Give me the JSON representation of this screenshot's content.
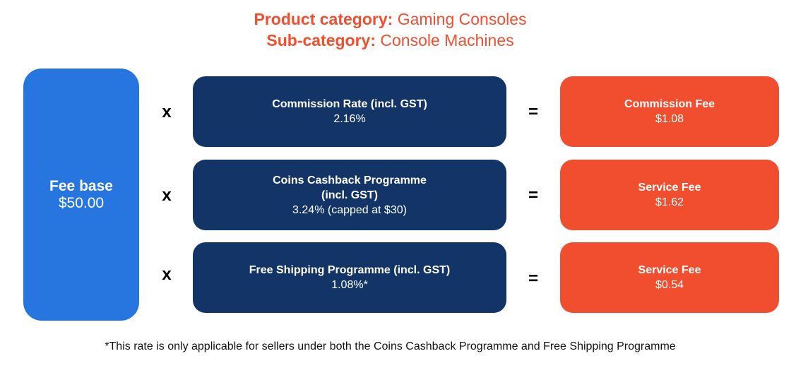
{
  "header": {
    "category_label": "Product category:",
    "category_value": "Gaming Consoles",
    "subcategory_label": "Sub-category:",
    "subcategory_value": "Console Machines"
  },
  "fee_base": {
    "label": "Fee base",
    "value": "$50.00"
  },
  "operators": {
    "multiply": "x",
    "equals": "="
  },
  "rows": [
    {
      "rate_title": "Commission Rate (incl. GST)",
      "rate_title2": "",
      "rate_value": "2.16%",
      "fee_title": "Commission Fee",
      "fee_value": "$1.08"
    },
    {
      "rate_title": "Coins Cashback Programme",
      "rate_title2": "(incl. GST)",
      "rate_value": "3.24% (capped at $30)",
      "fee_title": "Service Fee",
      "fee_value": "$1.62"
    },
    {
      "rate_title": "Free Shipping Programme (incl. GST)",
      "rate_title2": "",
      "rate_value": "1.08%*",
      "fee_title": "Service Fee",
      "fee_value": "$0.54"
    }
  ],
  "footnote": "*This rate is only applicable for sellers under both the Coins Cashback Programme and Free Shipping Programme",
  "colors": {
    "accent": "#f04e2f",
    "fee_base": "#2775df",
    "rate_box": "#133466"
  }
}
